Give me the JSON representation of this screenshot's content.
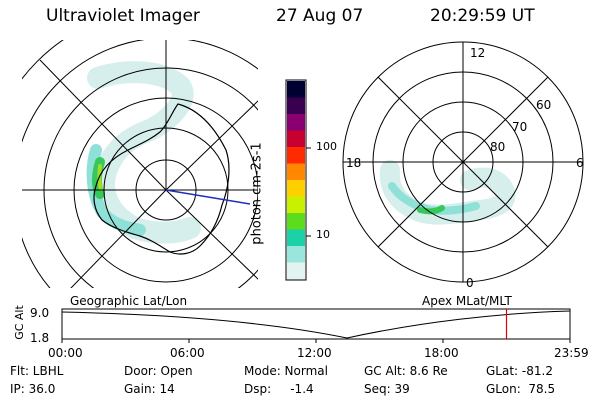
{
  "header": {
    "instrument": "Ultraviolet Imager",
    "date": "27 Aug 07",
    "time": "20:29:59  UT"
  },
  "left_panel": {
    "label": "Geographic Lat/Lon"
  },
  "right_panel": {
    "label": "Apex  MLat/MLT",
    "lat_labels": [
      "80",
      "70",
      "60"
    ],
    "mlt_labels": [
      "12",
      "18",
      "6",
      "0"
    ]
  },
  "colorbar": {
    "unit_label": "photon cm-2s-1",
    "tick_labels": [
      "100",
      "10"
    ],
    "colors": [
      "#000033",
      "#3a0050",
      "#8a0070",
      "#c80030",
      "#ff2a00",
      "#ff8800",
      "#ffd000",
      "#c8f000",
      "#5cdc1c",
      "#1cd0a8",
      "#9be6dc",
      "#e2f3f2"
    ]
  },
  "altitude_strip": {
    "ylabel": "GC Alt",
    "ytick_labels": [
      "9.0",
      "1.8"
    ],
    "time_labels": [
      "00:00",
      "06:00",
      "12:00",
      "18:00",
      "23:59"
    ],
    "current_marker_fraction": 0.875,
    "marker_color": "#e00000"
  },
  "footer": {
    "rows": [
      [
        "Flt: LBHL",
        "Door: Open",
        "Mode: Normal",
        "GC Alt: 8.6 Re",
        "GLat: -81.2"
      ],
      [
        "IP: 36.0",
        "Gain: 14",
        "Dsp:     -1.4",
        "Seq: 39",
        "GLon:  78.5"
      ]
    ]
  },
  "colors": {
    "aurora_pale": "#d6efec",
    "aurora_cyan": "#8fe0d6",
    "aurora_green": "#36c85a",
    "terminator": "#2030c0"
  }
}
